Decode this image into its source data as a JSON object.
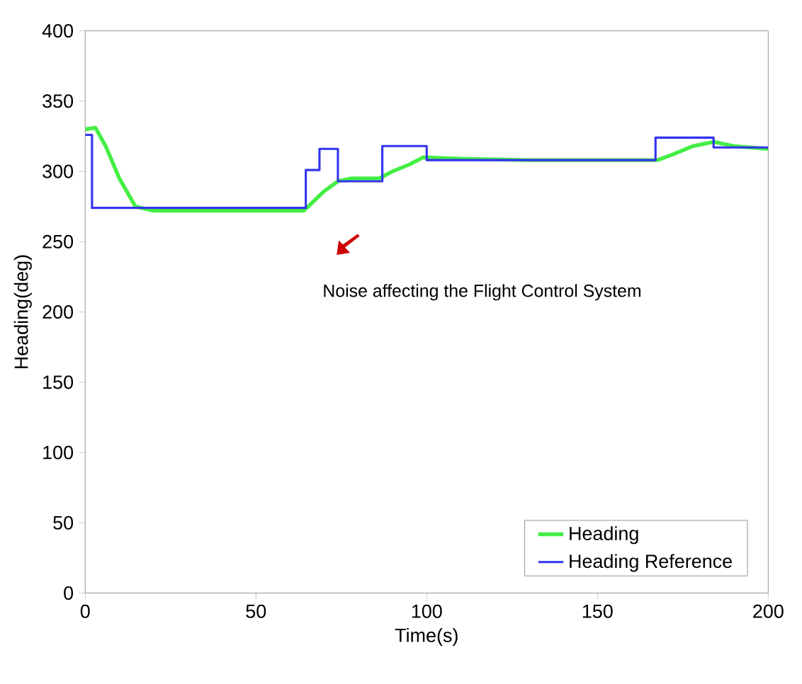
{
  "chart_data": {
    "type": "line",
    "xlabel": "Time(s)",
    "ylabel": "Heading(deg)",
    "xlim": [
      0,
      200
    ],
    "ylim": [
      0,
      400
    ],
    "xticks": [
      0,
      50,
      100,
      150,
      200
    ],
    "yticks": [
      0,
      50,
      100,
      150,
      200,
      250,
      300,
      350,
      400
    ],
    "grid": false,
    "legend": "bottom right",
    "marker": "none",
    "line_style": "solid",
    "annotations": [
      "Noise affecting the Flight Control System"
    ],
    "series": [
      {
        "name": "Heading",
        "color": "#44ee44",
        "x": [
          0,
          3,
          6,
          10,
          14.7,
          20,
          30,
          40,
          50,
          60,
          64,
          67,
          70,
          74,
          78,
          86,
          90,
          95,
          99,
          110,
          130,
          150,
          167.5,
          172,
          178,
          184,
          190,
          200
        ],
        "values": [
          330,
          331,
          318,
          295,
          275,
          272,
          272,
          272,
          272,
          272,
          272,
          279,
          286,
          293,
          295,
          295,
          300,
          305,
          310,
          309,
          308,
          308,
          308,
          312,
          318,
          321,
          318,
          316
        ]
      },
      {
        "name": "Heading Reference",
        "color": "#3333ee",
        "x": [
          0,
          2,
          2,
          64.6,
          64.6,
          68.6,
          68.6,
          74,
          74,
          87,
          87,
          100,
          100,
          167,
          167,
          184,
          184,
          200
        ],
        "values": [
          326,
          326,
          274,
          274,
          301,
          301,
          316,
          316,
          293,
          293,
          318,
          318,
          308,
          308,
          324,
          324,
          317,
          317
        ]
      }
    ]
  }
}
